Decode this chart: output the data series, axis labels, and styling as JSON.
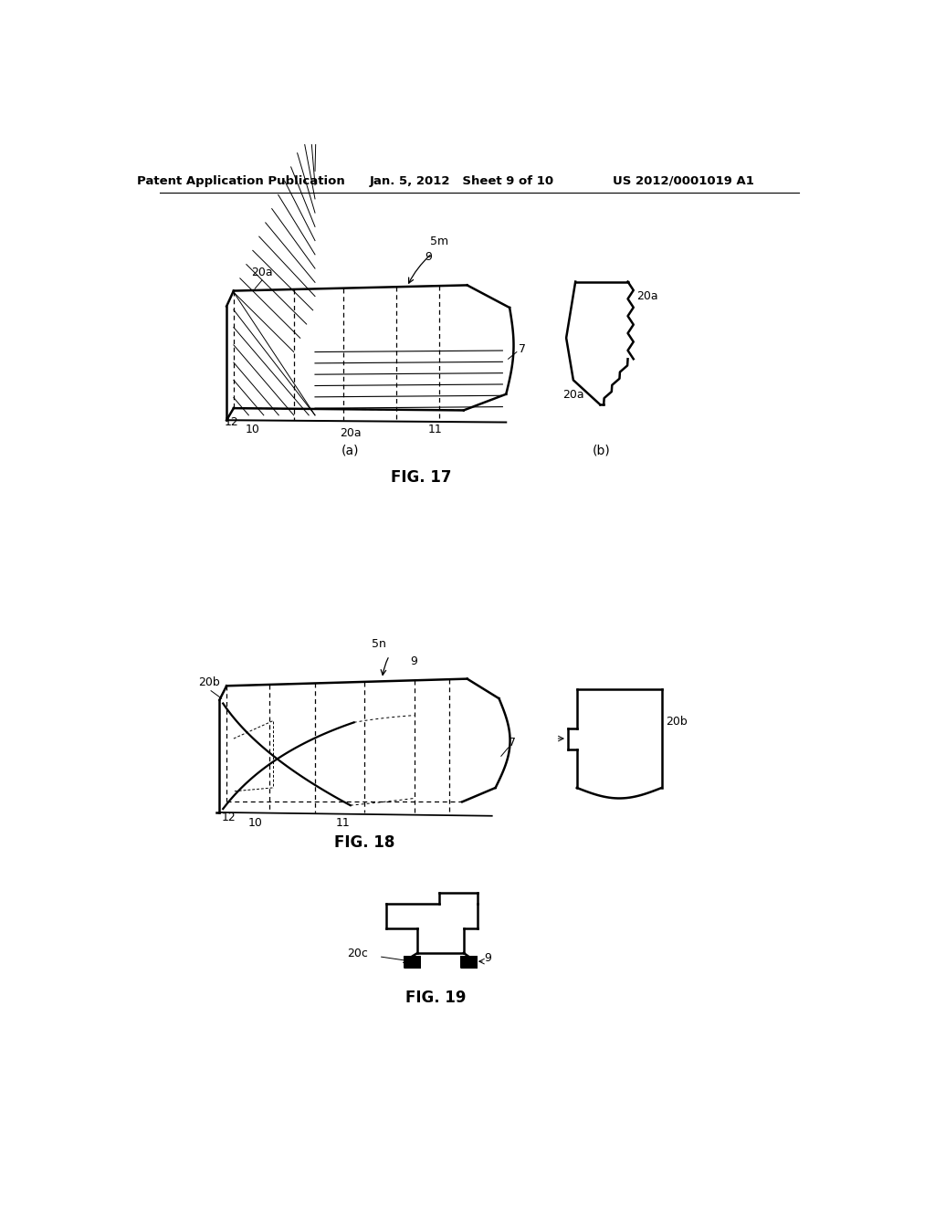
{
  "bg_color": "#ffffff",
  "header_left": "Patent Application Publication",
  "header_mid": "Jan. 5, 2012   Sheet 9 of 10",
  "header_right": "US 2012/0001019 A1",
  "fig17_caption": "FIG. 17",
  "fig18_caption": "FIG. 18",
  "fig19_caption": "FIG. 19"
}
